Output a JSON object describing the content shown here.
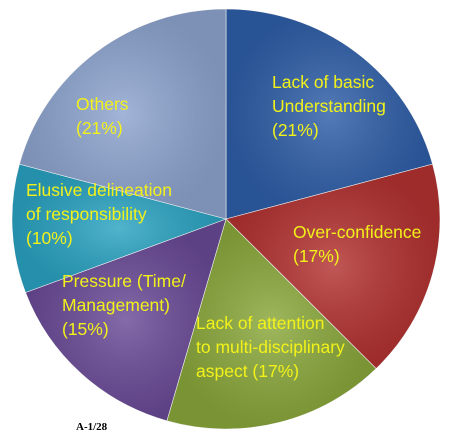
{
  "chart_data": {
    "type": "pie",
    "start_angle_deg": 0,
    "direction": "clockwise",
    "slices": [
      {
        "lines": [
          "Lack of basic",
          "Understanding",
          "(21%)"
        ],
        "value": 21,
        "color": "#2e5ea8"
      },
      {
        "lines": [
          "Over-confidence",
          "(17%)"
        ],
        "value": 17,
        "color": "#b33231"
      },
      {
        "lines": [
          "Lack of attention",
          "to multi-disciplinary",
          "aspect (17%)"
        ],
        "value": 17,
        "color": "#8aa83b"
      },
      {
        "lines": [
          "Pressure (Time/",
          "Management)",
          "(15%)"
        ],
        "value": 15,
        "color": "#6a4a97"
      },
      {
        "lines": [
          "Elusive delineation",
          "of responsibility",
          "(10%)"
        ],
        "value": 10,
        "color": "#2aa3c2"
      },
      {
        "lines": [
          "Others",
          "(21%)"
        ],
        "value": 21,
        "color": "#8ea5d0"
      }
    ]
  },
  "footer": {
    "slide_number": "A-1/28"
  }
}
